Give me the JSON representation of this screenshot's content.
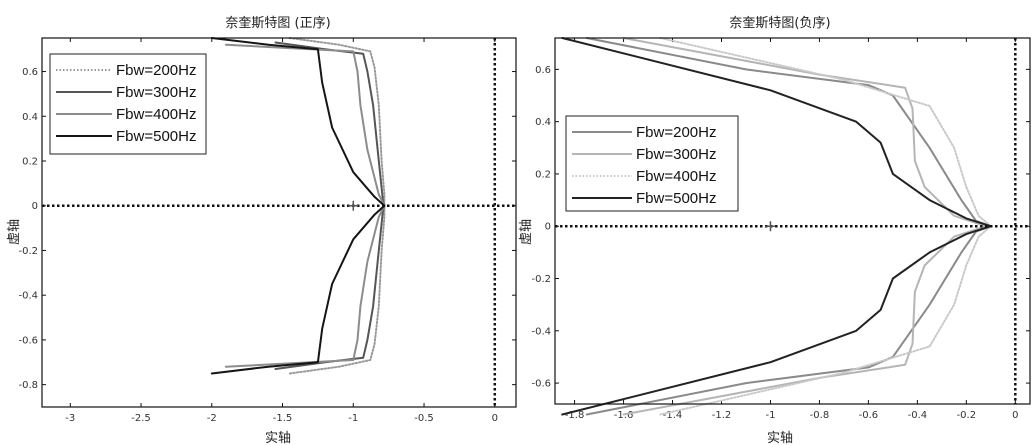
{
  "figure": {
    "colors": {
      "background": "#ffffff",
      "frame": "#111111",
      "reference_line": "#111111",
      "critical_point_marker": "#555555"
    },
    "critical_point": [
      -1,
      0
    ],
    "reference_lines": {
      "x": 0,
      "y": 0,
      "style": "dotted"
    }
  },
  "chart_data": [
    {
      "type": "line",
      "title": "奈奎斯特图 (正序)",
      "xlabel": "实轴",
      "ylabel": "虚轴",
      "xlim": [
        -3.2,
        0.15
      ],
      "ylim": [
        -0.9,
        0.75
      ],
      "xticks": [
        -3,
        -2.5,
        -2,
        -1.5,
        -1,
        -0.5,
        0
      ],
      "xtick_labels": [
        "-3",
        "-2.5",
        "-2",
        "-1.5",
        "-1",
        "-0.5",
        "0"
      ],
      "yticks": [
        0.6,
        0.4,
        0.2,
        0,
        -0.2,
        -0.4,
        -0.6,
        -0.8
      ],
      "ytick_labels": [
        "0.6",
        "0.4",
        "0.2",
        "0",
        "-0.2",
        "-0.4",
        "-0.6",
        "-0.8"
      ],
      "legend_position": "top-left",
      "series": [
        {
          "name": "Fbw=200Hz",
          "color": "#9a9a9a",
          "style": "dotted",
          "points": [
            [
              -1.45,
              0.75
            ],
            [
              -1.1,
              0.72
            ],
            [
              -0.88,
              0.69
            ],
            [
              -0.85,
              0.62
            ],
            [
              -0.82,
              0.45
            ],
            [
              -0.8,
              0.2
            ],
            [
              -0.78,
              0.05
            ],
            [
              -0.78,
              0.0
            ],
            [
              -0.78,
              -0.05
            ],
            [
              -0.8,
              -0.2
            ],
            [
              -0.82,
              -0.45
            ],
            [
              -0.85,
              -0.62
            ],
            [
              -0.88,
              -0.69
            ],
            [
              -1.1,
              -0.72
            ],
            [
              -1.45,
              -0.75
            ]
          ]
        },
        {
          "name": "Fbw=300Hz",
          "color": "#555555",
          "style": "solid",
          "points": [
            [
              -1.55,
              0.73
            ],
            [
              -1.2,
              0.7
            ],
            [
              -0.93,
              0.68
            ],
            [
              -0.9,
              0.6
            ],
            [
              -0.86,
              0.45
            ],
            [
              -0.82,
              0.2
            ],
            [
              -0.79,
              0.02
            ],
            [
              -0.78,
              0.0
            ],
            [
              -0.79,
              -0.02
            ],
            [
              -0.82,
              -0.2
            ],
            [
              -0.86,
              -0.45
            ],
            [
              -0.9,
              -0.6
            ],
            [
              -0.93,
              -0.68
            ],
            [
              -1.2,
              -0.7
            ],
            [
              -1.55,
              -0.73
            ]
          ]
        },
        {
          "name": "Fbw=400Hz",
          "color": "#8c8c8c",
          "style": "solid",
          "points": [
            [
              -1.9,
              0.72
            ],
            [
              -1.3,
              0.7
            ],
            [
              -1.0,
              0.69
            ],
            [
              -0.97,
              0.6
            ],
            [
              -0.95,
              0.45
            ],
            [
              -0.9,
              0.25
            ],
            [
              -0.82,
              0.05
            ],
            [
              -0.78,
              0.0
            ],
            [
              -0.82,
              -0.05
            ],
            [
              -0.9,
              -0.25
            ],
            [
              -0.95,
              -0.45
            ],
            [
              -0.97,
              -0.6
            ],
            [
              -1.0,
              -0.69
            ],
            [
              -1.3,
              -0.7
            ],
            [
              -1.9,
              -0.72
            ]
          ]
        },
        {
          "name": "Fbw=500Hz",
          "color": "#151515",
          "style": "solid",
          "points": [
            [
              -2.0,
              0.75
            ],
            [
              -1.6,
              0.72
            ],
            [
              -1.25,
              0.7
            ],
            [
              -1.22,
              0.55
            ],
            [
              -1.15,
              0.35
            ],
            [
              -1.0,
              0.15
            ],
            [
              -0.85,
              0.04
            ],
            [
              -0.78,
              0.0
            ],
            [
              -0.85,
              -0.04
            ],
            [
              -1.0,
              -0.15
            ],
            [
              -1.15,
              -0.35
            ],
            [
              -1.22,
              -0.55
            ],
            [
              -1.25,
              -0.7
            ],
            [
              -1.6,
              -0.72
            ],
            [
              -2.0,
              -0.75
            ]
          ]
        }
      ]
    },
    {
      "type": "line",
      "title": "奈奎斯特图(负序)",
      "xlabel": "实轴",
      "ylabel": "虚轴",
      "xlim": [
        -1.88,
        0.06
      ],
      "ylim": [
        -0.68,
        0.72
      ],
      "xticks": [
        -1.8,
        -1.6,
        -1.4,
        -1.2,
        -1,
        -0.8,
        -0.6,
        -0.4,
        -0.2,
        0
      ],
      "xtick_labels": [
        "-1.8",
        "-1.6",
        "-1.4",
        "-1.2",
        "-1",
        "-0.8",
        "-0.6",
        "-0.4",
        "-0.2",
        "0"
      ],
      "yticks": [
        0.6,
        0.4,
        0.2,
        0,
        -0.2,
        -0.4,
        -0.6
      ],
      "ytick_labels": [
        "0.6",
        "0.4",
        "0.2",
        "0",
        "-0.2",
        "-0.4",
        "-0.6"
      ],
      "legend_position": "middle-left",
      "series": [
        {
          "name": "Fbw=200Hz",
          "color": "#8a8a8a",
          "style": "solid",
          "points": [
            [
              -1.75,
              0.72
            ],
            [
              -1.1,
              0.6
            ],
            [
              -0.6,
              0.54
            ],
            [
              -0.5,
              0.5
            ],
            [
              -0.35,
              0.3
            ],
            [
              -0.22,
              0.1
            ],
            [
              -0.16,
              0.02
            ],
            [
              -0.1,
              0.0
            ],
            [
              -0.16,
              -0.02
            ],
            [
              -0.22,
              -0.1
            ],
            [
              -0.35,
              -0.3
            ],
            [
              -0.5,
              -0.5
            ],
            [
              -0.6,
              -0.54
            ],
            [
              -1.1,
              -0.6
            ],
            [
              -1.75,
              -0.72
            ]
          ]
        },
        {
          "name": "Fbw=300Hz",
          "color": "#b5b5b5",
          "style": "solid",
          "points": [
            [
              -1.6,
              0.72
            ],
            [
              -0.8,
              0.58
            ],
            [
              -0.45,
              0.53
            ],
            [
              -0.42,
              0.45
            ],
            [
              -0.41,
              0.25
            ],
            [
              -0.37,
              0.15
            ],
            [
              -0.25,
              0.04
            ],
            [
              -0.12,
              0.0
            ],
            [
              -0.25,
              -0.04
            ],
            [
              -0.37,
              -0.15
            ],
            [
              -0.41,
              -0.25
            ],
            [
              -0.42,
              -0.45
            ],
            [
              -0.45,
              -0.53
            ],
            [
              -0.8,
              -0.58
            ],
            [
              -1.6,
              -0.72
            ]
          ]
        },
        {
          "name": "Fbw=400Hz",
          "color": "#c9c9c9",
          "style": "dotted",
          "points": [
            [
              -1.45,
              0.72
            ],
            [
              -0.7,
              0.56
            ],
            [
              -0.35,
              0.46
            ],
            [
              -0.25,
              0.3
            ],
            [
              -0.2,
              0.15
            ],
            [
              -0.15,
              0.04
            ],
            [
              -0.1,
              0.0
            ],
            [
              -0.15,
              -0.04
            ],
            [
              -0.2,
              -0.15
            ],
            [
              -0.25,
              -0.3
            ],
            [
              -0.35,
              -0.46
            ],
            [
              -0.7,
              -0.56
            ],
            [
              -1.45,
              -0.72
            ]
          ]
        },
        {
          "name": "Fbw=500Hz",
          "color": "#222222",
          "style": "solid",
          "points": [
            [
              -1.85,
              0.72
            ],
            [
              -1.0,
              0.52
            ],
            [
              -0.65,
              0.4
            ],
            [
              -0.55,
              0.32
            ],
            [
              -0.5,
              0.2
            ],
            [
              -0.35,
              0.1
            ],
            [
              -0.2,
              0.03
            ],
            [
              -0.1,
              0.0
            ],
            [
              -0.2,
              -0.03
            ],
            [
              -0.35,
              -0.1
            ],
            [
              -0.5,
              -0.2
            ],
            [
              -0.55,
              -0.32
            ],
            [
              -0.65,
              -0.4
            ],
            [
              -1.0,
              -0.52
            ],
            [
              -1.85,
              -0.72
            ]
          ]
        }
      ]
    }
  ]
}
